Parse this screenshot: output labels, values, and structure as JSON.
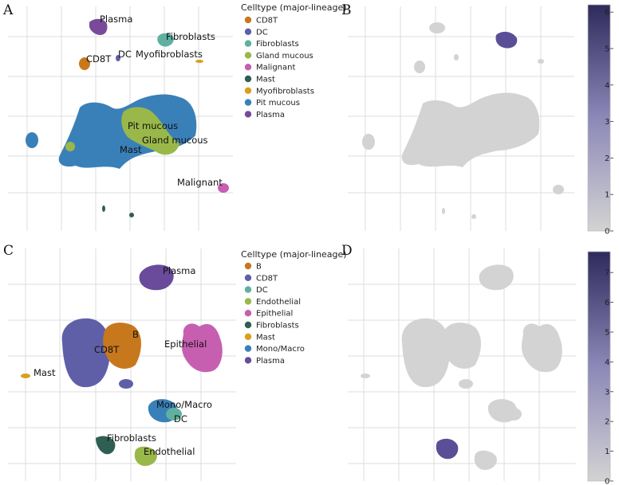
{
  "panels": {
    "A": {
      "letter": "A",
      "legend_title": "Celltype (major-lineage)",
      "legend": [
        {
          "label": "CD8T",
          "color": "#c8781c"
        },
        {
          "label": "DC",
          "color": "#5f5fa8"
        },
        {
          "label": "Fibroblasts",
          "color": "#5fb0a0"
        },
        {
          "label": "Gland mucous",
          "color": "#9ab84a"
        },
        {
          "label": "Malignant",
          "color": "#c75fb0"
        },
        {
          "label": "Mast",
          "color": "#2f5f52"
        },
        {
          "label": "Myofibroblasts",
          "color": "#d8a020"
        },
        {
          "label": "Pit mucous",
          "color": "#3a80b8"
        },
        {
          "label": "Plasma",
          "color": "#7a4a9a"
        }
      ],
      "clusters": [
        {
          "label": "Plasma"
        },
        {
          "label": "Fibroblasts"
        },
        {
          "label": "CD8T"
        },
        {
          "label": "DC"
        },
        {
          "label": "Myofibroblasts"
        },
        {
          "label": "Pit mucous"
        },
        {
          "label": "Gland mucous"
        },
        {
          "label": "Mast"
        },
        {
          "label": "Malignant"
        }
      ]
    },
    "B": {
      "letter": "B",
      "colorbar": {
        "min": 0,
        "max": 6.2,
        "ticks": [
          "0",
          "1",
          "2",
          "3",
          "4",
          "5",
          "6"
        ],
        "tick_values": [
          0,
          1,
          2,
          3,
          4,
          5,
          6
        ],
        "low_color": "#d3d3d3",
        "high_color": "#2e2a5c"
      }
    },
    "C": {
      "letter": "C",
      "legend_title": "Celltype (major-lineage)",
      "legend": [
        {
          "label": "B",
          "color": "#c8781c"
        },
        {
          "label": "CD8T",
          "color": "#5f5fa8"
        },
        {
          "label": "DC",
          "color": "#5fb0a0"
        },
        {
          "label": "Endothelial",
          "color": "#9ab84a"
        },
        {
          "label": "Epithelial",
          "color": "#c75fb0"
        },
        {
          "label": "Fibroblasts",
          "color": "#2f5f52"
        },
        {
          "label": "Mast",
          "color": "#d8a020"
        },
        {
          "label": "Mono/Macro",
          "color": "#3a80b8"
        },
        {
          "label": "Plasma",
          "color": "#6a4a9a"
        }
      ],
      "clusters": [
        {
          "label": "Plasma"
        },
        {
          "label": "B"
        },
        {
          "label": "CD8T"
        },
        {
          "label": "Epithelial"
        },
        {
          "label": "Mast"
        },
        {
          "label": "Mono/Macro"
        },
        {
          "label": "DC"
        },
        {
          "label": "Fibroblasts"
        },
        {
          "label": "Endothelial"
        }
      ]
    },
    "D": {
      "letter": "D",
      "colorbar": {
        "min": 0,
        "max": 7.7,
        "ticks": [
          "0",
          "1",
          "2",
          "3",
          "4",
          "5",
          "6",
          "7"
        ],
        "tick_values": [
          0,
          1,
          2,
          3,
          4,
          5,
          6,
          7
        ],
        "low_color": "#d3d3d3",
        "high_color": "#2e2a5c"
      }
    }
  }
}
